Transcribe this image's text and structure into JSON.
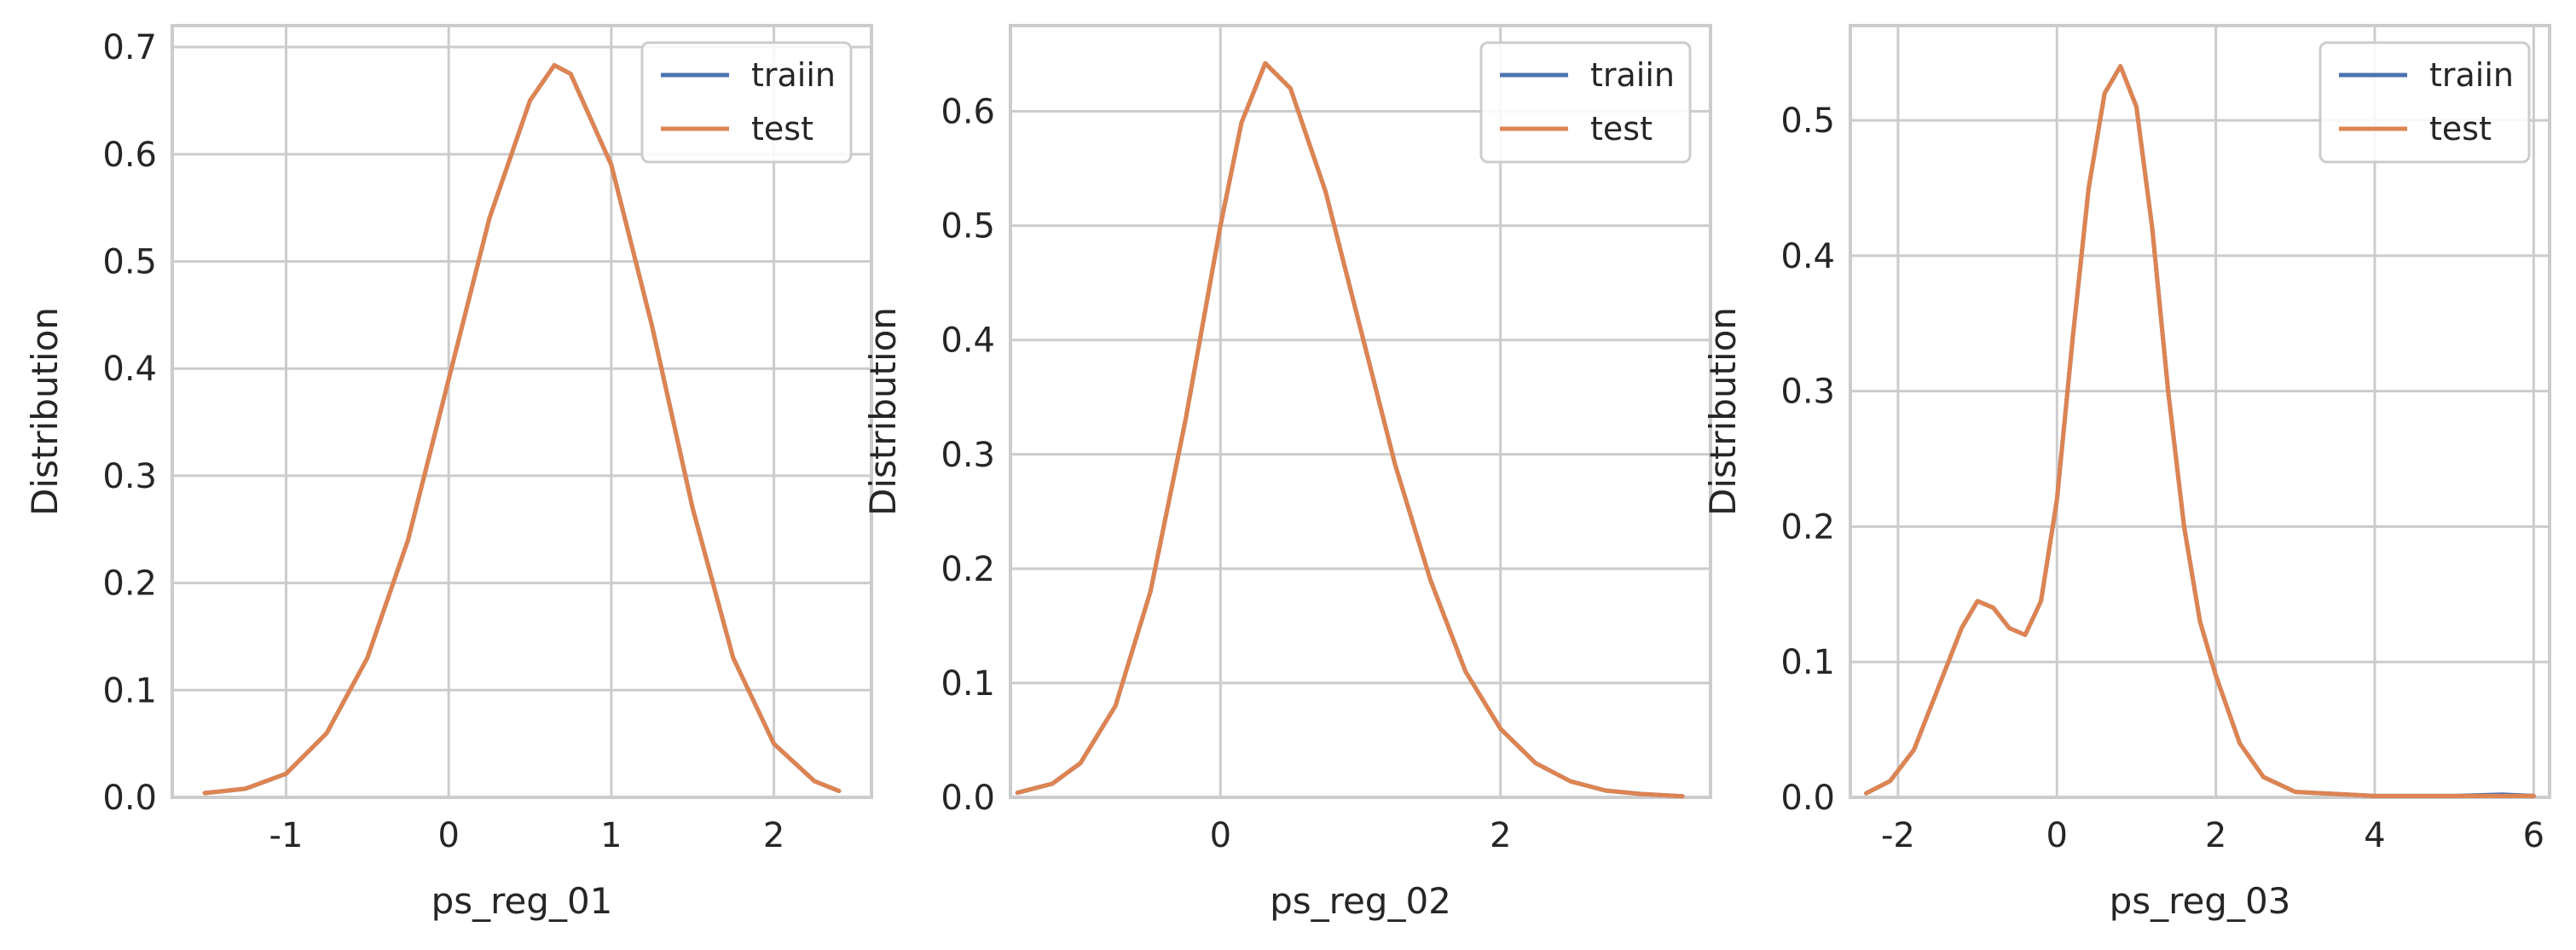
{
  "colors": {
    "train": "#4c72b0",
    "test": "#dd8452",
    "grid": "#cccccc",
    "spine": "#cccccc",
    "background": "#ffffff",
    "text": "#262626"
  },
  "chart_data": [
    {
      "type": "line",
      "xlabel": "ps_reg_01",
      "ylabel": "Distribution",
      "xlim": [
        -1.7,
        2.6
      ],
      "ylim": [
        0,
        0.72
      ],
      "xticks": [
        -1,
        0,
        1,
        2
      ],
      "xtick_labels": [
        "-1",
        "0",
        "1",
        "2"
      ],
      "yticks": [
        0.0,
        0.1,
        0.2,
        0.3,
        0.4,
        0.5,
        0.6,
        0.7
      ],
      "ytick_labels": [
        "0.0",
        "0.1",
        "0.2",
        "0.3",
        "0.4",
        "0.5",
        "0.6",
        "0.7"
      ],
      "grid": true,
      "legend_position": "top-right",
      "series": [
        {
          "name": "traiin",
          "x": [
            -1.5,
            -1.25,
            -1.0,
            -0.75,
            -0.5,
            -0.25,
            0.0,
            0.25,
            0.5,
            0.65,
            0.75,
            1.0,
            1.25,
            1.5,
            1.75,
            2.0,
            2.25,
            2.4
          ],
          "y": [
            0.004,
            0.008,
            0.022,
            0.06,
            0.13,
            0.24,
            0.39,
            0.54,
            0.65,
            0.683,
            0.675,
            0.59,
            0.44,
            0.27,
            0.13,
            0.05,
            0.015,
            0.006
          ]
        },
        {
          "name": "test",
          "x": [
            -1.5,
            -1.25,
            -1.0,
            -0.75,
            -0.5,
            -0.25,
            0.0,
            0.25,
            0.5,
            0.65,
            0.75,
            1.0,
            1.25,
            1.5,
            1.75,
            2.0,
            2.25,
            2.4
          ],
          "y": [
            0.004,
            0.008,
            0.022,
            0.06,
            0.13,
            0.24,
            0.39,
            0.54,
            0.65,
            0.683,
            0.675,
            0.59,
            0.44,
            0.27,
            0.13,
            0.05,
            0.015,
            0.006
          ]
        }
      ]
    },
    {
      "type": "line",
      "xlabel": "ps_reg_02",
      "ylabel": "Distribution",
      "xlim": [
        -1.5,
        3.5
      ],
      "ylim": [
        0,
        0.675
      ],
      "xticks": [
        0,
        2
      ],
      "xtick_labels": [
        "0",
        "2"
      ],
      "yticks": [
        0.0,
        0.1,
        0.2,
        0.3,
        0.4,
        0.5,
        0.6
      ],
      "ytick_labels": [
        "0.0",
        "0.1",
        "0.2",
        "0.3",
        "0.4",
        "0.5",
        "0.6"
      ],
      "grid": true,
      "legend_position": "top-right",
      "series": [
        {
          "name": "traiin",
          "x": [
            -1.45,
            -1.2,
            -1.0,
            -0.75,
            -0.5,
            -0.25,
            0.0,
            0.15,
            0.32,
            0.5,
            0.75,
            1.0,
            1.25,
            1.5,
            1.75,
            2.0,
            2.25,
            2.5,
            2.75,
            3.0,
            3.3
          ],
          "y": [
            0.004,
            0.012,
            0.03,
            0.08,
            0.18,
            0.33,
            0.5,
            0.59,
            0.642,
            0.62,
            0.53,
            0.41,
            0.29,
            0.19,
            0.11,
            0.06,
            0.03,
            0.014,
            0.006,
            0.003,
            0.001
          ]
        },
        {
          "name": "test",
          "x": [
            -1.45,
            -1.2,
            -1.0,
            -0.75,
            -0.5,
            -0.25,
            0.0,
            0.15,
            0.32,
            0.5,
            0.75,
            1.0,
            1.25,
            1.5,
            1.75,
            2.0,
            2.25,
            2.5,
            2.75,
            3.0,
            3.3
          ],
          "y": [
            0.004,
            0.012,
            0.03,
            0.08,
            0.18,
            0.33,
            0.5,
            0.59,
            0.642,
            0.62,
            0.53,
            0.41,
            0.29,
            0.19,
            0.11,
            0.06,
            0.03,
            0.014,
            0.006,
            0.003,
            0.001
          ]
        }
      ]
    },
    {
      "type": "line",
      "xlabel": "ps_reg_03",
      "ylabel": "Distribution",
      "xlim": [
        -2.6,
        6.2
      ],
      "ylim": [
        0,
        0.57
      ],
      "xticks": [
        -2,
        0,
        2,
        4,
        6
      ],
      "xtick_labels": [
        "-2",
        "0",
        "2",
        "4",
        "6"
      ],
      "yticks": [
        0.0,
        0.1,
        0.2,
        0.3,
        0.4,
        0.5
      ],
      "ytick_labels": [
        "0.0",
        "0.1",
        "0.2",
        "0.3",
        "0.4",
        "0.5"
      ],
      "grid": true,
      "legend_position": "top-right",
      "series": [
        {
          "name": "traiin",
          "x": [
            -2.4,
            -2.1,
            -1.8,
            -1.5,
            -1.2,
            -1.0,
            -0.8,
            -0.6,
            -0.4,
            -0.2,
            0.0,
            0.2,
            0.4,
            0.6,
            0.8,
            1.0,
            1.2,
            1.4,
            1.6,
            1.8,
            2.0,
            2.3,
            2.6,
            3.0,
            4.0,
            5.0,
            5.6,
            6.0
          ],
          "y": [
            0.003,
            0.012,
            0.035,
            0.08,
            0.125,
            0.145,
            0.14,
            0.125,
            0.12,
            0.145,
            0.22,
            0.34,
            0.45,
            0.52,
            0.54,
            0.51,
            0.42,
            0.3,
            0.2,
            0.13,
            0.09,
            0.04,
            0.015,
            0.004,
            0.001,
            0.001,
            0.002,
            0.001
          ]
        },
        {
          "name": "test",
          "x": [
            -2.4,
            -2.1,
            -1.8,
            -1.5,
            -1.2,
            -1.0,
            -0.8,
            -0.6,
            -0.4,
            -0.2,
            0.0,
            0.2,
            0.4,
            0.6,
            0.8,
            1.0,
            1.2,
            1.4,
            1.6,
            1.8,
            2.0,
            2.3,
            2.6,
            3.0,
            4.0,
            5.0,
            6.0
          ],
          "y": [
            0.003,
            0.012,
            0.035,
            0.08,
            0.125,
            0.145,
            0.14,
            0.125,
            0.12,
            0.145,
            0.22,
            0.34,
            0.45,
            0.52,
            0.54,
            0.51,
            0.42,
            0.3,
            0.2,
            0.13,
            0.09,
            0.04,
            0.015,
            0.004,
            0.001,
            0.001,
            0.001
          ]
        }
      ]
    }
  ]
}
